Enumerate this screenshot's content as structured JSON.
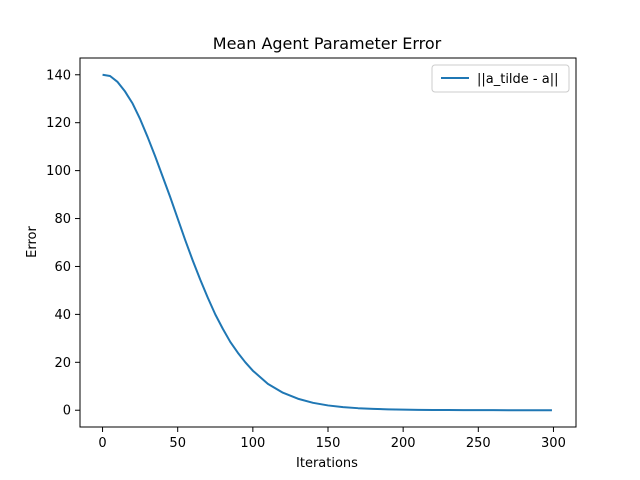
{
  "chart_data": {
    "type": "line",
    "title": "Mean Agent Parameter Error",
    "xlabel": "Iterations",
    "ylabel": "Error",
    "xlim": [
      -15,
      315
    ],
    "ylim": [
      -7,
      147
    ],
    "xticks": [
      0,
      50,
      100,
      150,
      200,
      250,
      300
    ],
    "yticks": [
      0,
      20,
      40,
      60,
      80,
      100,
      120,
      140
    ],
    "grid": false,
    "legend_position": "top-right",
    "series": [
      {
        "name": "||a_tilde - a||",
        "color": "#1f77b4",
        "x": [
          0,
          5,
          10,
          15,
          20,
          25,
          30,
          35,
          40,
          45,
          50,
          55,
          60,
          65,
          70,
          75,
          80,
          85,
          90,
          95,
          100,
          110,
          120,
          130,
          140,
          150,
          160,
          170,
          180,
          190,
          200,
          210,
          220,
          230,
          240,
          250,
          260,
          270,
          280,
          290,
          299
        ],
        "y": [
          140,
          139.5,
          137,
          133,
          128,
          121.5,
          114,
          106,
          97.5,
          89,
          80,
          71,
          62.5,
          54.5,
          47,
          40,
          34,
          28.5,
          24,
          20,
          16.5,
          11,
          7.3,
          4.8,
          3.1,
          2.0,
          1.3,
          0.85,
          0.55,
          0.36,
          0.24,
          0.16,
          0.1,
          0.07,
          0.05,
          0.03,
          0.02,
          0.015,
          0.01,
          0.007,
          0.005
        ]
      }
    ]
  }
}
